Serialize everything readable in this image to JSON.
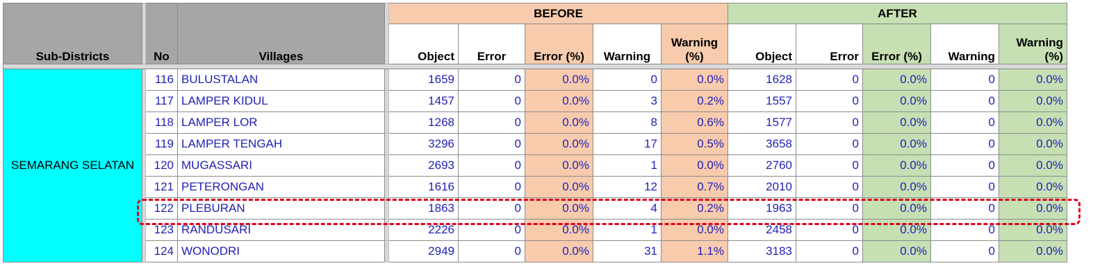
{
  "headers": {
    "sub_districts": "Sub-Districts",
    "no": "No",
    "villages": "Villages",
    "before": "BEFORE",
    "after": "AFTER",
    "object": "Object",
    "error": "Error",
    "error_pct": "Error (%)",
    "warning": "Warning",
    "warning_pct_line1": "Warning",
    "warning_pct_line2": "(%)"
  },
  "sub_district": "SEMARANG SELATAN",
  "rows": [
    {
      "no": "116",
      "village": "BULUSTALAN",
      "b_object": "1659",
      "b_error": "0",
      "b_error_pct": "0.0%",
      "b_warning": "0",
      "b_warning_pct": "0.0%",
      "a_object": "1628",
      "a_error": "0",
      "a_error_pct": "0.0%",
      "a_warning": "0",
      "a_warning_pct": "0.0%"
    },
    {
      "no": "117",
      "village": "LAMPER KIDUL",
      "b_object": "1457",
      "b_error": "0",
      "b_error_pct": "0.0%",
      "b_warning": "3",
      "b_warning_pct": "0.2%",
      "a_object": "1557",
      "a_error": "0",
      "a_error_pct": "0.0%",
      "a_warning": "0",
      "a_warning_pct": "0.0%"
    },
    {
      "no": "118",
      "village": "LAMPER LOR",
      "b_object": "1268",
      "b_error": "0",
      "b_error_pct": "0.0%",
      "b_warning": "8",
      "b_warning_pct": "0.6%",
      "a_object": "1577",
      "a_error": "0",
      "a_error_pct": "0.0%",
      "a_warning": "0",
      "a_warning_pct": "0.0%"
    },
    {
      "no": "119",
      "village": "LAMPER TENGAH",
      "b_object": "3296",
      "b_error": "0",
      "b_error_pct": "0.0%",
      "b_warning": "17",
      "b_warning_pct": "0.5%",
      "a_object": "3658",
      "a_error": "0",
      "a_error_pct": "0.0%",
      "a_warning": "0",
      "a_warning_pct": "0.0%"
    },
    {
      "no": "120",
      "village": "MUGASSARI",
      "b_object": "2693",
      "b_error": "0",
      "b_error_pct": "0.0%",
      "b_warning": "1",
      "b_warning_pct": "0.0%",
      "a_object": "2760",
      "a_error": "0",
      "a_error_pct": "0.0%",
      "a_warning": "0",
      "a_warning_pct": "0.0%"
    },
    {
      "no": "121",
      "village": "PETERONGAN",
      "b_object": "1616",
      "b_error": "0",
      "b_error_pct": "0.0%",
      "b_warning": "12",
      "b_warning_pct": "0.7%",
      "a_object": "2010",
      "a_error": "0",
      "a_error_pct": "0.0%",
      "a_warning": "0",
      "a_warning_pct": "0.0%"
    },
    {
      "no": "122",
      "village": "PLEBURAN",
      "b_object": "1863",
      "b_error": "0",
      "b_error_pct": "0.0%",
      "b_warning": "4",
      "b_warning_pct": "0.2%",
      "a_object": "1963",
      "a_error": "0",
      "a_error_pct": "0.0%",
      "a_warning": "0",
      "a_warning_pct": "0.0%"
    },
    {
      "no": "123",
      "village": "RANDUSARI",
      "b_object": "2226",
      "b_error": "0",
      "b_error_pct": "0.0%",
      "b_warning": "1",
      "b_warning_pct": "0.0%",
      "a_object": "2458",
      "a_error": "0",
      "a_error_pct": "0.0%",
      "a_warning": "0",
      "a_warning_pct": "0.0%"
    },
    {
      "no": "124",
      "village": "WONODRI",
      "b_object": "2949",
      "b_error": "0",
      "b_error_pct": "0.0%",
      "b_warning": "31",
      "b_warning_pct": "1.1%",
      "a_object": "3183",
      "a_error": "0",
      "a_error_pct": "0.0%",
      "a_warning": "0",
      "a_warning_pct": "0.0%"
    }
  ],
  "colors": {
    "header_gray": "#a6a6a6",
    "before_tint": "#f8cbad",
    "after_tint": "#c6e0b4",
    "sub_district_fill": "#00ffff",
    "value_text": "#1f1fb4",
    "highlight_border": "#e0001b"
  }
}
